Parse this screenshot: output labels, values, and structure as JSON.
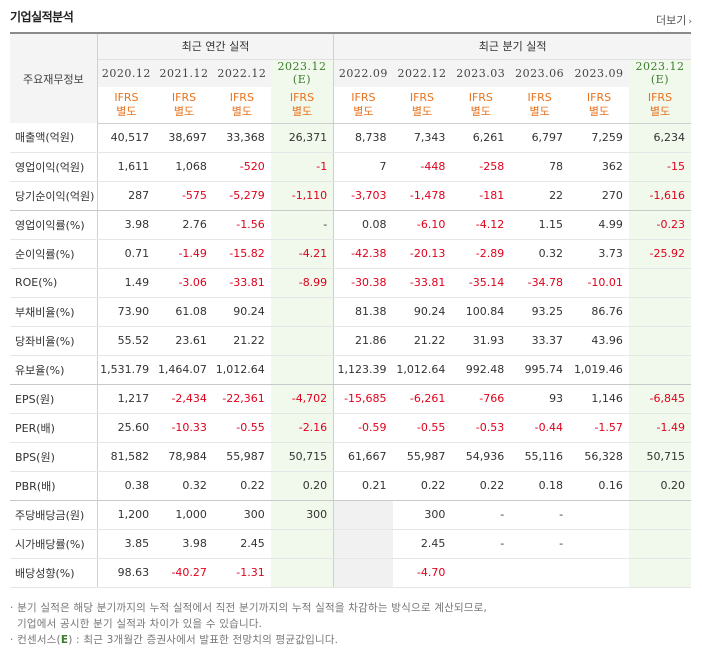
{
  "header": {
    "title": "기업실적분석",
    "more_label": "더보기",
    "more_arrow": "›"
  },
  "table": {
    "label_header": "주요재무정보",
    "annual_group": "최근 연간 실적",
    "quarter_group": "최근 분기 실적",
    "annual_dates": [
      "2020.12",
      "2021.12",
      "2022.12",
      "2023.12"
    ],
    "quarter_dates": [
      "2022.09",
      "2022.12",
      "2023.03",
      "2023.06",
      "2023.09",
      "2023.12"
    ],
    "est_mark": "(E)",
    "ifrs_top": "IFRS",
    "ifrs_bottom": "별도",
    "rows": [
      {
        "label": "매출액(억원)",
        "v": [
          "40,517",
          "38,697",
          "33,368",
          "26,371",
          "8,738",
          "7,343",
          "6,261",
          "6,797",
          "7,259",
          "6,234"
        ]
      },
      {
        "label": "영업이익(억원)",
        "v": [
          "1,611",
          "1,068",
          "-520",
          "-1",
          "7",
          "-448",
          "-258",
          "78",
          "362",
          "-15"
        ]
      },
      {
        "label": "당기순이익(억원)",
        "v": [
          "287",
          "-575",
          "-5,279",
          "-1,110",
          "-3,703",
          "-1,478",
          "-181",
          "22",
          "270",
          "-1,616"
        ]
      },
      {
        "label": "영업이익률(%)",
        "v": [
          "3.98",
          "2.76",
          "-1.56",
          "-",
          "0.08",
          "-6.10",
          "-4.12",
          "1.15",
          "4.99",
          "-0.23"
        ]
      },
      {
        "label": "순이익률(%)",
        "v": [
          "0.71",
          "-1.49",
          "-15.82",
          "-4.21",
          "-42.38",
          "-20.13",
          "-2.89",
          "0.32",
          "3.73",
          "-25.92"
        ]
      },
      {
        "label": "ROE(%)",
        "v": [
          "1.49",
          "-3.06",
          "-33.81",
          "-8.99",
          "-30.38",
          "-33.81",
          "-35.14",
          "-34.78",
          "-10.01",
          ""
        ]
      },
      {
        "label": "부채비율(%)",
        "v": [
          "73.90",
          "61.08",
          "90.24",
          "",
          "81.38",
          "90.24",
          "100.84",
          "93.25",
          "86.76",
          ""
        ]
      },
      {
        "label": "당좌비율(%)",
        "v": [
          "55.52",
          "23.61",
          "21.22",
          "",
          "21.86",
          "21.22",
          "31.93",
          "33.37",
          "43.96",
          ""
        ]
      },
      {
        "label": "유보율(%)",
        "v": [
          "1,531.79",
          "1,464.07",
          "1,012.64",
          "",
          "1,123.39",
          "1,012.64",
          "992.48",
          "995.74",
          "1,019.46",
          ""
        ]
      },
      {
        "label": "EPS(원)",
        "v": [
          "1,217",
          "-2,434",
          "-22,361",
          "-4,702",
          "-15,685",
          "-6,261",
          "-766",
          "93",
          "1,146",
          "-6,845"
        ]
      },
      {
        "label": "PER(배)",
        "v": [
          "25.60",
          "-10.33",
          "-0.55",
          "-2.16",
          "-0.59",
          "-0.55",
          "-0.53",
          "-0.44",
          "-1.57",
          "-1.49"
        ]
      },
      {
        "label": "BPS(원)",
        "v": [
          "81,582",
          "78,984",
          "55,987",
          "50,715",
          "61,667",
          "55,987",
          "54,936",
          "55,116",
          "56,328",
          "50,715"
        ]
      },
      {
        "label": "PBR(배)",
        "v": [
          "0.38",
          "0.32",
          "0.22",
          "0.20",
          "0.21",
          "0.22",
          "0.22",
          "0.18",
          "0.16",
          "0.20"
        ]
      },
      {
        "label": "주당배당금(원)",
        "v": [
          "1,200",
          "1,000",
          "300",
          "300",
          "",
          "300",
          "-",
          "-",
          "",
          ""
        ]
      },
      {
        "label": "시가배당률(%)",
        "v": [
          "3.85",
          "3.98",
          "2.45",
          "",
          "",
          "2.45",
          "-",
          "-",
          "",
          ""
        ]
      },
      {
        "label": "배당성향(%)",
        "v": [
          "98.63",
          "-40.27",
          "-1.31",
          "",
          "",
          "-4.70",
          "",
          "",
          "",
          ""
        ]
      }
    ]
  },
  "notes": {
    "line1": "분기 실적은 해당 분기까지의 누적 실적에서 직전 분기까지의 누적 실적을 차감하는 방식으로 계산되므로,",
    "line2": "기업에서 공시한 분기 실적과 차이가 있을 수 있습니다.",
    "line3_prefix": "컨센서스(",
    "line3_mark": "E",
    "line3_suffix": ") : 최근 3개월간 증권사에서 발표한 전망치의 평균값입니다.",
    "bullet": "·"
  },
  "colors": {
    "negative": "#e0001b",
    "ifrs": "#e8731e",
    "estimate_bg": "#f1f8ec",
    "estimate_text": "#3b7d2b"
  }
}
